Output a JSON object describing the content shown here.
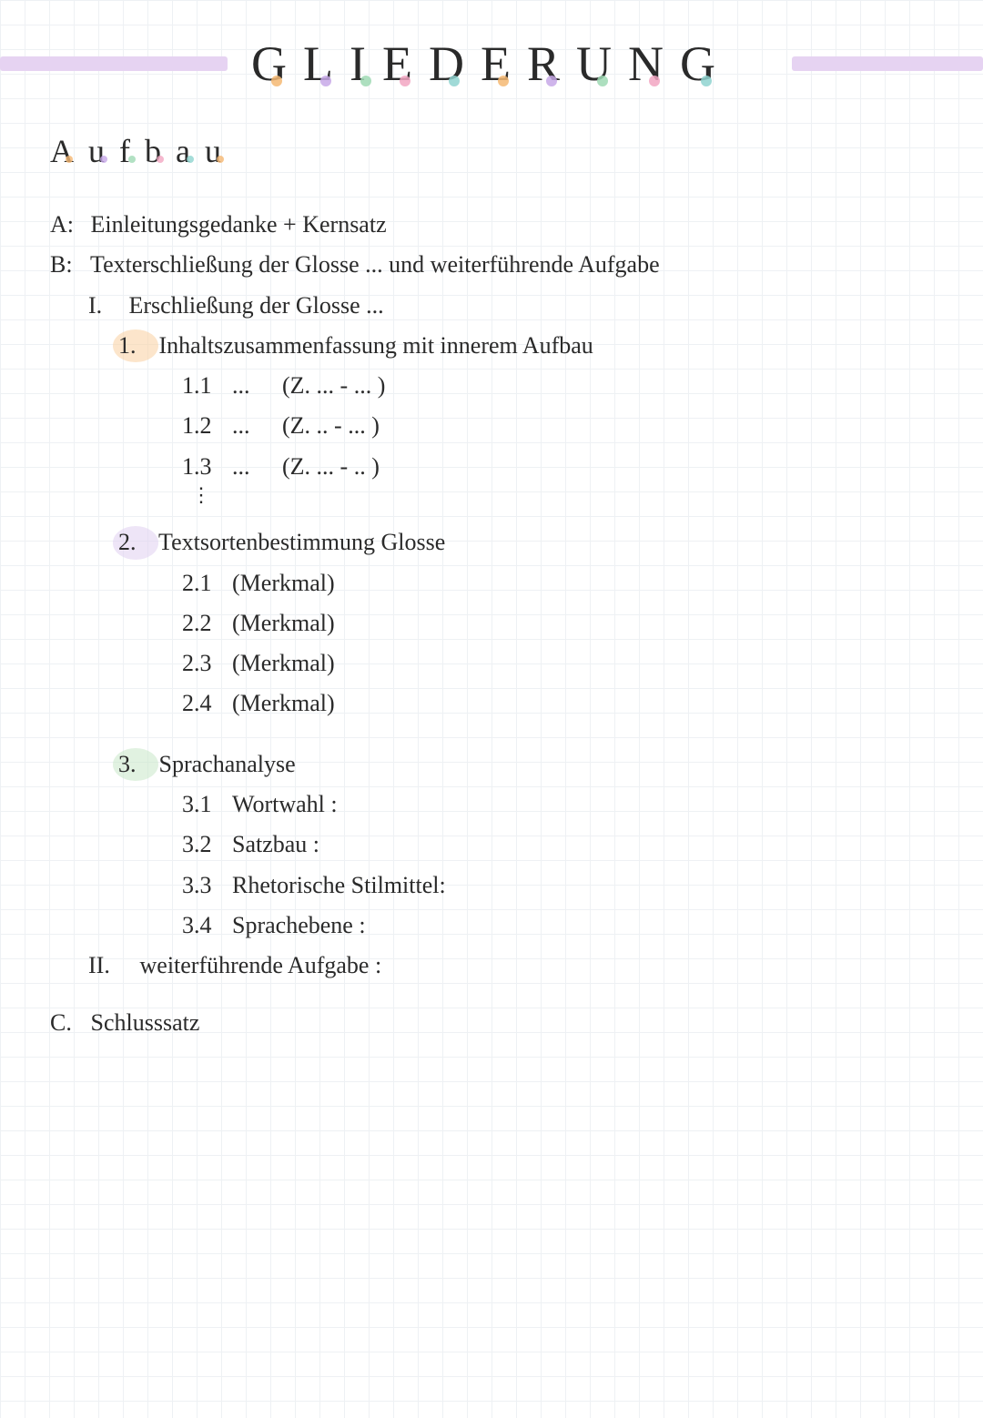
{
  "colors": {
    "grid": "#eef1f4",
    "text": "#2a2a2a",
    "title_bar": "#e6d3f2",
    "dot_orange": "#f5b873",
    "dot_purple": "#c7a8e8",
    "dot_green": "#9fd9b4",
    "dot_pink": "#f2a6c2",
    "dot_teal": "#8fd4d0",
    "hl_orange": "#f9cfa0",
    "hl_lavender": "#e0cff0",
    "hl_green": "#c8e8c8"
  },
  "title": {
    "text": "GLIEDERUNG",
    "letters": [
      "G",
      "L",
      "I",
      "E",
      "D",
      "E",
      "R",
      "U",
      "N",
      "G"
    ],
    "dot_colors": [
      "#f5b873",
      "#c7a8e8",
      "#9fd9b4",
      "#f2a6c2",
      "#8fd4d0",
      "#f5b873",
      "#c7a8e8",
      "#9fd9b4",
      "#f2a6c2",
      "#8fd4d0"
    ]
  },
  "subtitle": {
    "text": "Aufbau",
    "letters": [
      "A",
      "u",
      "f",
      "b",
      "a",
      "u"
    ],
    "dot_colors": [
      "#f5b873",
      "#c7a8e8",
      "#9fd9b4",
      "#f2a6c2",
      "#8fd4d0",
      "#f5b873"
    ]
  },
  "outline": {
    "A": {
      "label": "A:",
      "text": "Einleitungsgedanke  +  Kernsatz"
    },
    "B": {
      "label": "B:",
      "text": "Texterschließung der Glosse ...   und weiterführende Aufgabe",
      "I": {
        "label": "I.",
        "text": "Erschließung der Glosse ...",
        "s1": {
          "num": "1.",
          "text": "Inhaltszusammenfassung  mit innerem  Aufbau",
          "rows": [
            {
              "n": "1.1",
              "mid": "...",
              "r": "(Z. ... - ... )"
            },
            {
              "n": "1.2",
              "mid": "...",
              "r": "(Z. .. - ... )"
            },
            {
              "n": "1.3",
              "mid": "...",
              "r": "(Z. ... - .. )"
            }
          ],
          "vdots": "⋮"
        },
        "s2": {
          "num": "2.",
          "text": "Textsortenbestimmung  Glosse",
          "rows": [
            {
              "n": "2.1",
              "r": "(Merkmal)"
            },
            {
              "n": "2.2",
              "r": "(Merkmal)"
            },
            {
              "n": "2.3",
              "r": "(Merkmal)"
            },
            {
              "n": "2.4",
              "r": "(Merkmal)"
            }
          ]
        },
        "s3": {
          "num": "3.",
          "text": "Sprachanalyse",
          "rows": [
            {
              "n": "3.1",
              "r": "Wortwahl :"
            },
            {
              "n": "3.2",
              "r": "Satzbau :"
            },
            {
              "n": "3.3",
              "r": "Rhetorische Stilmittel:"
            },
            {
              "n": "3.4",
              "r": "Sprachebene :"
            }
          ]
        }
      },
      "II": {
        "label": "II.",
        "text": "weiterführende  Aufgabe :"
      }
    },
    "C": {
      "label": "C.",
      "text": "Schlusssatz"
    }
  }
}
